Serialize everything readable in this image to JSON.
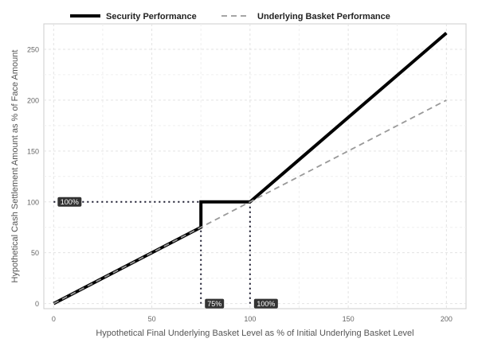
{
  "chart_data": {
    "type": "line",
    "title": "",
    "xlabel": "Hypothetical Final Underlying Basket Level as % of Initial Underlying Basket Level",
    "ylabel": "Hypothetical Cash Settlement Amount as % of Face Amount",
    "xlim": [
      -5,
      210
    ],
    "ylim": [
      -5,
      275
    ],
    "x_ticks": [
      0,
      50,
      100,
      150,
      200
    ],
    "y_ticks": [
      0,
      50,
      100,
      150,
      200,
      250
    ],
    "grid": true,
    "legend_position": "top",
    "series": [
      {
        "name": "Security Performance",
        "style": "solid",
        "color": "#000000",
        "x": [
          0,
          75,
          75,
          100,
          200
        ],
        "y": [
          0,
          75,
          100,
          100,
          266
        ]
      },
      {
        "name": "Underlying Basket Performance",
        "style": "dashed",
        "color": "#999999",
        "x": [
          0,
          200
        ],
        "y": [
          0,
          200
        ]
      }
    ],
    "reference_lines": [
      {
        "from": [
          0,
          100
        ],
        "to": [
          75,
          100
        ]
      },
      {
        "from": [
          75,
          100
        ],
        "to": [
          75,
          0
        ]
      },
      {
        "from": [
          100,
          100
        ],
        "to": [
          100,
          0
        ]
      }
    ],
    "annotations": [
      {
        "text": "100%",
        "x": 0,
        "y": 100
      },
      {
        "text": "75%",
        "x": 75,
        "y": 0
      },
      {
        "text": "100%",
        "x": 100,
        "y": 0
      }
    ]
  }
}
